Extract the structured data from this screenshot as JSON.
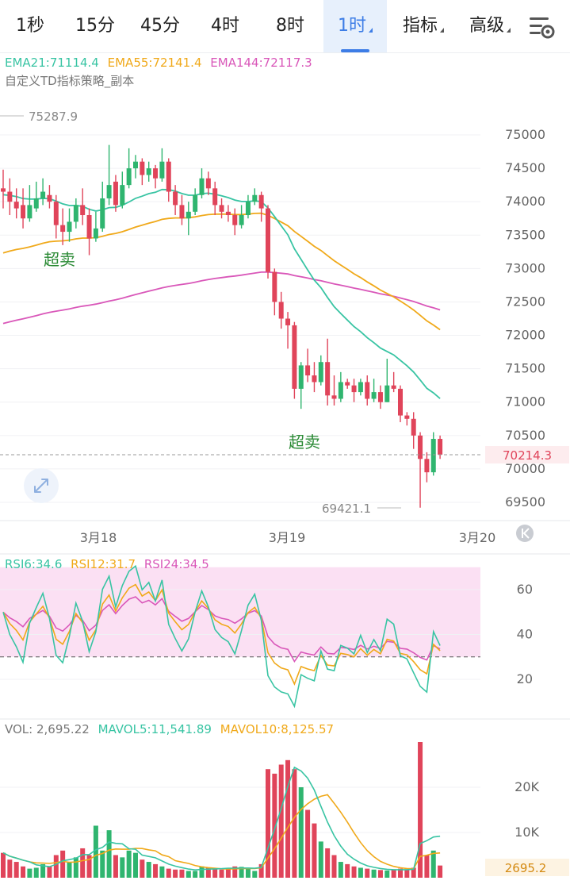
{
  "tabs": [
    {
      "label": "1秒",
      "active": false,
      "dropdown": false
    },
    {
      "label": "15分",
      "active": false,
      "dropdown": false
    },
    {
      "label": "45分",
      "active": false,
      "dropdown": false
    },
    {
      "label": "4时",
      "active": false,
      "dropdown": false
    },
    {
      "label": "8时",
      "active": false,
      "dropdown": false
    },
    {
      "label": "1时",
      "active": true,
      "dropdown": true
    },
    {
      "label": "指标",
      "active": false,
      "dropdown": true
    },
    {
      "label": "高级",
      "active": false,
      "dropdown": true
    }
  ],
  "settings_icon": "chart-settings-icon",
  "colors": {
    "up": "#2fb56f",
    "down": "#e0445a",
    "ema21": "#38c4a3",
    "ema55": "#f0a91a",
    "ema144": "#d957b9",
    "accent": "#3d7de6",
    "rsi6": "#38c4a3",
    "rsi12": "#f0a91a",
    "rsi24": "#d957b9",
    "rsi_zone": "#fbe0f3"
  },
  "main": {
    "ema_legend": [
      {
        "label": "EMA21:71114.4",
        "color": "#38c4a3"
      },
      {
        "label": "EMA55:72141.4",
        "color": "#f0a91a"
      },
      {
        "label": "EMA144:72117.3",
        "color": "#d957b9"
      }
    ],
    "strategy_label": "自定义TD指标策略_副本",
    "price_axis": [
      "75000",
      "74500",
      "74000",
      "73500",
      "73000",
      "72500",
      "72000",
      "71500",
      "71000",
      "70500",
      "70000",
      "69500"
    ],
    "high_marker": "75287.9",
    "low_marker": "69421.1",
    "last_price": "70214.3",
    "signals": [
      {
        "text": "超卖"
      },
      {
        "text": "超卖"
      }
    ],
    "date_labels": [
      "3月18",
      "3月19",
      "3月20"
    ],
    "reset_icon": "scroll-to-latest-icon",
    "zoom_icon": "expand-arrows-icon"
  },
  "rsi": {
    "legend": [
      {
        "label": "RSI6:34.6",
        "color": "#38c4a3"
      },
      {
        "label": "RSI12:31.7",
        "color": "#f0a91a"
      },
      {
        "label": "RSI24:34.5",
        "color": "#d957b9"
      }
    ],
    "axis": [
      "60",
      "40",
      "20"
    ],
    "overbought": 70,
    "oversold": 30
  },
  "volume": {
    "legend": [
      {
        "label": "VOL: 2,695.22",
        "color": "#777777"
      },
      {
        "label": "MAVOL5:11,541.89",
        "color": "#38c4a3"
      },
      {
        "label": "MAVOL10:8,125.57",
        "color": "#f0a91a"
      }
    ],
    "axis": [
      "20K",
      "10K"
    ],
    "last_volume": "2695.2"
  },
  "chart_data": {
    "type": "candlestick",
    "interval": "1h",
    "price_range": [
      69350,
      75450
    ],
    "candles": [
      [
        74200,
        74150,
        74480,
        73900
      ],
      [
        74150,
        74000,
        74350,
        73800
      ],
      [
        74000,
        73900,
        74200,
        73750
      ],
      [
        73950,
        73750,
        74200,
        73600
      ],
      [
        73750,
        73950,
        74250,
        73700
      ],
      [
        73900,
        74050,
        74300,
        73850
      ],
      [
        74050,
        74150,
        74350,
        73950
      ],
      [
        74100,
        74000,
        74250,
        73900
      ],
      [
        74000,
        73650,
        74100,
        73450
      ],
      [
        73650,
        73550,
        73900,
        73350
      ],
      [
        73550,
        73700,
        73900,
        73400
      ],
      [
        73700,
        73950,
        74050,
        73600
      ],
      [
        73950,
        73800,
        74200,
        73650
      ],
      [
        73800,
        73450,
        73900,
        73200
      ],
      [
        73450,
        73600,
        73850,
        73400
      ],
      [
        73600,
        74050,
        74300,
        73550
      ],
      [
        74050,
        74250,
        74850,
        73950
      ],
      [
        74300,
        73950,
        74400,
        73850
      ],
      [
        73950,
        74250,
        74450,
        73900
      ],
      [
        74250,
        74500,
        74800,
        74200
      ],
      [
        74500,
        74600,
        74700,
        74350
      ],
      [
        74600,
        74400,
        74650,
        74250
      ],
      [
        74400,
        74500,
        74600,
        74300
      ],
      [
        74500,
        74350,
        74550,
        74200
      ],
      [
        74350,
        74600,
        74800,
        74300
      ],
      [
        74600,
        74150,
        74650,
        74000
      ],
      [
        74150,
        73950,
        74250,
        73800
      ],
      [
        73950,
        73750,
        74100,
        73650
      ],
      [
        73750,
        73850,
        74000,
        73500
      ],
      [
        73850,
        74100,
        74200,
        73800
      ],
      [
        74100,
        74350,
        74500,
        74050
      ],
      [
        74350,
        74200,
        74450,
        74100
      ],
      [
        74200,
        73950,
        74300,
        73800
      ],
      [
        73950,
        73850,
        74050,
        73750
      ],
      [
        73850,
        73800,
        73950,
        73700
      ],
      [
        73800,
        73650,
        73900,
        73500
      ],
      [
        73650,
        73800,
        73950,
        73600
      ],
      [
        73800,
        74000,
        74100,
        73750
      ],
      [
        74000,
        74100,
        74200,
        73950
      ],
      [
        74100,
        73900,
        74150,
        73700
      ],
      [
        73900,
        72950,
        73950,
        72850
      ],
      [
        72950,
        72500,
        73000,
        72300
      ],
      [
        72500,
        72250,
        72650,
        72100
      ],
      [
        72250,
        72150,
        72350,
        71800
      ],
      [
        72150,
        71200,
        72200,
        71050
      ],
      [
        71200,
        71550,
        71600,
        70900
      ],
      [
        71550,
        71400,
        71800,
        71300
      ],
      [
        71400,
        71300,
        71600,
        71150
      ],
      [
        71300,
        71600,
        71700,
        71250
      ],
      [
        71600,
        71100,
        71950,
        70950
      ],
      [
        71100,
        71050,
        71400,
        70950
      ],
      [
        71050,
        71300,
        71450,
        71000
      ],
      [
        71300,
        71250,
        71350,
        71200
      ],
      [
        71250,
        71150,
        71350,
        71000
      ],
      [
        71150,
        71300,
        71350,
        71100
      ],
      [
        71300,
        71050,
        71400,
        70950
      ],
      [
        71050,
        71150,
        71350,
        71000
      ],
      [
        71150,
        71000,
        71250,
        70900
      ],
      [
        71000,
        71250,
        71650,
        71000
      ],
      [
        71250,
        71200,
        71450,
        71150
      ],
      [
        71200,
        70800,
        71250,
        70700
      ],
      [
        70800,
        70750,
        70850,
        70650
      ],
      [
        70750,
        70500,
        70850,
        70300
      ],
      [
        70500,
        70150,
        70550,
        69420
      ],
      [
        70150,
        69950,
        70250,
        69800
      ],
      [
        69950,
        70450,
        70550,
        69900
      ],
      [
        70450,
        70214.3,
        70500,
        70150
      ]
    ],
    "high_marker": 75287.9,
    "low_marker": 69421.1,
    "last_price": 70214.3,
    "ema21_last": 71114.4,
    "ema55_last": 72141.4,
    "ema144_last": 72117.3,
    "rsi": {
      "range": [
        0,
        75
      ],
      "rsi6_last": 34.6,
      "rsi12_last": 31.7,
      "rsi24_last": 34.5
    },
    "volume": {
      "range": [
        0,
        31000
      ],
      "values": [
        5500,
        4000,
        3500,
        2500,
        2000,
        2200,
        3000,
        2500,
        5000,
        6000,
        3500,
        4500,
        6500,
        5000,
        11500,
        6000,
        10500,
        5000,
        4500,
        6000,
        5500,
        4000,
        3500,
        3000,
        2500,
        2000,
        1800,
        1800,
        1500,
        1500,
        2500,
        2200,
        2000,
        1800,
        2000,
        2500,
        2400,
        2000,
        1500,
        3000,
        24000,
        23000,
        25000,
        26000,
        24000,
        20000,
        15000,
        12000,
        8000,
        6500,
        5000,
        3500,
        3000,
        2500,
        2200,
        2000,
        1800,
        1700,
        1600,
        1800,
        2000,
        1800,
        2200,
        30000,
        5000,
        6000,
        2695.22
      ],
      "mavol5_last": 11541.89,
      "mavol10_last": 8125.57
    },
    "dates": [
      "3月18",
      "3月19",
      "3月20"
    ]
  }
}
